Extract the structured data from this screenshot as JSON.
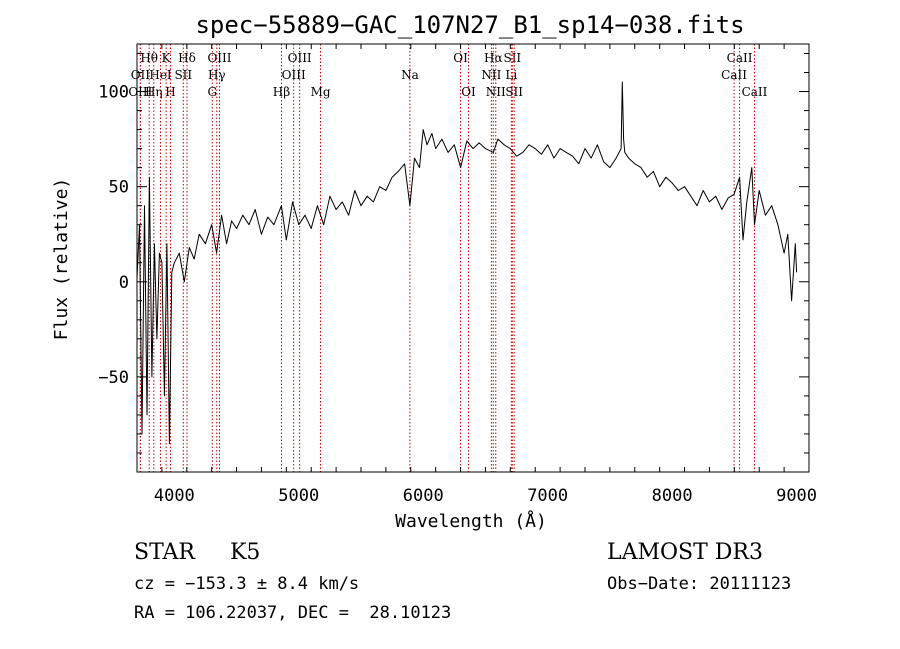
{
  "chart_data": {
    "type": "line",
    "title": "spec−55889−GAC_107N27_B1_sp14−038.fits",
    "xlabel": "Wavelength (Å)",
    "ylabel": "Flux (relative)",
    "xlim": [
      3700,
      9100
    ],
    "ylim": [
      -100,
      125
    ],
    "xticks": [
      4000,
      5000,
      6000,
      7000,
      8000,
      9000
    ],
    "xtick_labels": [
      "4000",
      "5000",
      "6000",
      "7000",
      "8000",
      "9000"
    ],
    "yticks": [
      -50,
      0,
      50,
      100
    ],
    "ytick_labels": [
      "−50",
      "0",
      "50",
      "100"
    ],
    "line_color": "#000000",
    "marker_color": "#cc0000",
    "spectrum": {
      "x": [
        3700,
        3720,
        3740,
        3760,
        3780,
        3800,
        3820,
        3840,
        3860,
        3880,
        3900,
        3920,
        3940,
        3960,
        3980,
        4000,
        4040,
        4080,
        4120,
        4160,
        4200,
        4250,
        4300,
        4340,
        4380,
        4420,
        4460,
        4500,
        4550,
        4600,
        4650,
        4700,
        4750,
        4800,
        4860,
        4900,
        4950,
        5000,
        5050,
        5100,
        5150,
        5200,
        5250,
        5300,
        5350,
        5400,
        5450,
        5500,
        5550,
        5600,
        5650,
        5700,
        5750,
        5800,
        5850,
        5893,
        5930,
        5970,
        6000,
        6030,
        6070,
        6100,
        6150,
        6200,
        6250,
        6300,
        6350,
        6400,
        6450,
        6500,
        6563,
        6600,
        6650,
        6700,
        6750,
        6800,
        6850,
        6900,
        6950,
        7000,
        7050,
        7100,
        7150,
        7200,
        7250,
        7300,
        7350,
        7400,
        7450,
        7500,
        7550,
        7590,
        7600,
        7610,
        7620,
        7650,
        7700,
        7750,
        7800,
        7850,
        7900,
        7950,
        8000,
        8050,
        8100,
        8150,
        8200,
        8250,
        8300,
        8350,
        8400,
        8450,
        8498,
        8542,
        8570,
        8600,
        8640,
        8662,
        8700,
        8750,
        8800,
        8850,
        8900,
        8930,
        8960,
        8990,
        9000
      ],
      "y": [
        2,
        30,
        -80,
        40,
        -70,
        55,
        -50,
        20,
        -30,
        15,
        10,
        -60,
        20,
        -85,
        5,
        10,
        15,
        0,
        18,
        12,
        25,
        20,
        30,
        15,
        35,
        20,
        32,
        28,
        35,
        30,
        38,
        25,
        34,
        30,
        40,
        22,
        42,
        30,
        35,
        28,
        40,
        30,
        45,
        38,
        42,
        35,
        48,
        40,
        45,
        42,
        50,
        48,
        55,
        58,
        62,
        40,
        65,
        60,
        80,
        72,
        78,
        70,
        75,
        68,
        72,
        60,
        74,
        70,
        73,
        70,
        68,
        75,
        72,
        70,
        66,
        68,
        72,
        70,
        67,
        72,
        65,
        70,
        68,
        66,
        62,
        70,
        65,
        72,
        63,
        60,
        65,
        70,
        105,
        75,
        68,
        65,
        62,
        60,
        55,
        58,
        50,
        55,
        52,
        48,
        50,
        45,
        40,
        48,
        42,
        45,
        38,
        44,
        46,
        55,
        22,
        42,
        60,
        30,
        48,
        35,
        40,
        30,
        15,
        25,
        -10,
        20,
        5
      ]
    },
    "line_markers": [
      {
        "label": "Hθ",
        "wavelength": 3798,
        "row": 1
      },
      {
        "label": "K",
        "wavelength": 3934,
        "row": 1
      },
      {
        "label": "Hδ",
        "wavelength": 4102,
        "row": 1
      },
      {
        "label": "OII",
        "wavelength": 3727,
        "row": 2
      },
      {
        "label": "HeI",
        "wavelength": 3889,
        "row": 2
      },
      {
        "label": "SII",
        "wavelength": 4072,
        "row": 2
      },
      {
        "label": "OIII",
        "wavelength": 3727,
        "row": 3
      },
      {
        "label": "Hη",
        "wavelength": 3835,
        "row": 3
      },
      {
        "label": "H",
        "wavelength": 3969,
        "row": 3
      },
      {
        "label": "OIII",
        "wavelength": 4363,
        "row": 1
      },
      {
        "label": "Hγ",
        "wavelength": 4341,
        "row": 2
      },
      {
        "label": "G",
        "wavelength": 4305,
        "row": 3
      },
      {
        "label": "OIII",
        "wavelength": 5007,
        "row": 1
      },
      {
        "label": "OIII",
        "wavelength": 4959,
        "row": 2
      },
      {
        "label": "Hβ",
        "wavelength": 4861,
        "row": 3
      },
      {
        "label": "Mg",
        "wavelength": 5175,
        "row": 3
      },
      {
        "label": "Na",
        "wavelength": 5893,
        "row": 2
      },
      {
        "label": "OI",
        "wavelength": 6300,
        "row": 1
      },
      {
        "label": "OI",
        "wavelength": 6364,
        "row": 3
      },
      {
        "label": "Hα",
        "wavelength": 6563,
        "row": 1
      },
      {
        "label": "SII",
        "wavelength": 6716,
        "row": 1
      },
      {
        "label": "NII",
        "wavelength": 6548,
        "row": 2
      },
      {
        "label": "Li",
        "wavelength": 6708,
        "row": 2
      },
      {
        "label": "NII",
        "wavelength": 6583,
        "row": 3
      },
      {
        "label": "SII",
        "wavelength": 6731,
        "row": 3
      },
      {
        "label": "CaII",
        "wavelength": 8542,
        "row": 1
      },
      {
        "label": "CaII",
        "wavelength": 8498,
        "row": 2
      },
      {
        "label": "CaII",
        "wavelength": 8662,
        "row": 3
      }
    ]
  },
  "info": {
    "class_line": "STAR     K5",
    "survey": "LAMOST DR3",
    "cz": "cz = −153.3 ± 8.4 km/s",
    "obs_date": "Obs−Date: 20111123",
    "radec": "RA = 106.22037, DEC =  28.10123"
  }
}
